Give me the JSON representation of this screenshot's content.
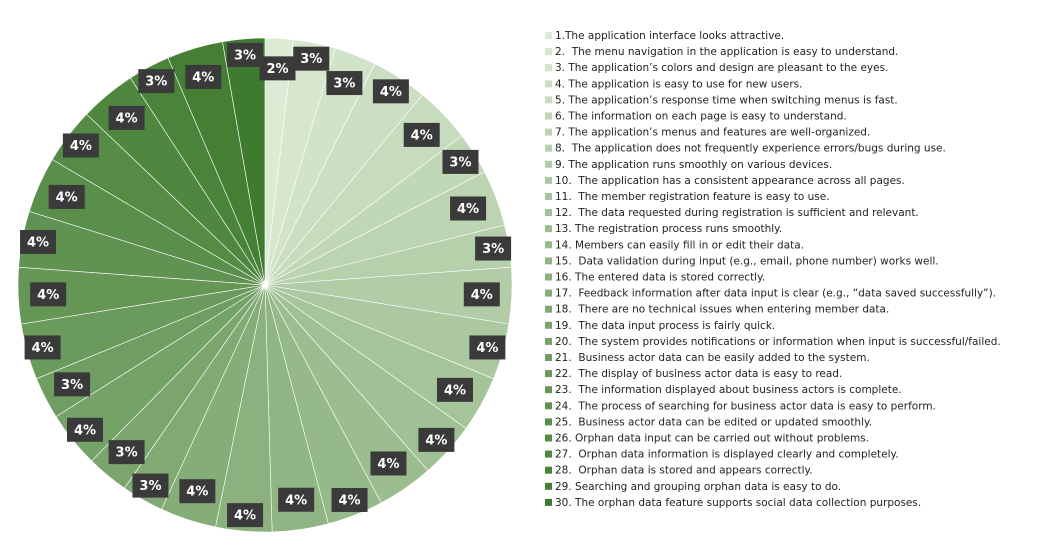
{
  "chart_data": {
    "type": "pie",
    "categories": [
      "1.The application interface looks attractive.",
      "2.  The menu navigation in the application is easy to understand.",
      "3. The application’s colors and design are pleasant to the eyes.",
      "4. The application is easy to use for new users.",
      "5. The application’s response time when switching menus is fast.",
      "6. The information on each page is easy to understand.",
      "7. The application’s menus and features are well-organized.",
      "8.  The application does not frequently experience errors/bugs during use.",
      "9. The application runs smoothly on various devices.",
      "10.  The application has a consistent appearance across all pages.",
      "11.  The member registration feature is easy to use.",
      "12.  The data requested during registration is sufficient and relevant.",
      "13. The registration process runs smoothly.",
      "14. Members can easily fill in or edit their data.",
      "15.  Data validation during input (e.g., email, phone number) works well.",
      "16. The entered data is stored correctly.",
      "17.  Feedback information after data input is clear (e.g., “data saved successfully”).",
      "18.  There are no technical issues when entering member data.",
      "19.  The data input process is fairly quick.",
      "20.  The system provides notifications or information when input is successful/failed.",
      "21.  Business actor data can be easily added to the system.",
      "22.  The display of business actor data is easy to read.",
      "23.  The information displayed about business actors is complete.",
      "24.  The process of searching for business actor data is easy to perform.",
      "25.  Business actor data can be edited or updated smoothly.",
      "26. Orphan data input can be carried out without problems.",
      "27.  Orphan data information is displayed clearly and completely.",
      "28.  Orphan data is stored and appears correctly.",
      "29. Searching and grouping orphan data is easy to do.",
      "30. The orphan data feature supports social data collection purposes."
    ],
    "values": [
      2,
      3,
      3,
      4,
      4,
      3,
      4,
      3,
      4,
      4,
      4,
      4,
      4,
      4,
      4,
      4,
      4,
      3,
      3,
      4,
      3,
      4,
      4,
      4,
      4,
      4,
      4,
      3,
      4,
      3
    ],
    "value_labels": [
      "2%",
      "3%",
      "3%",
      "4%",
      "4%",
      "3%",
      "4%",
      "3%",
      "4%",
      "4%",
      "4%",
      "4%",
      "4%",
      "4%",
      "4%",
      "4%",
      "4%",
      "3%",
      "3%",
      "4%",
      "3%",
      "4%",
      "4%",
      "4%",
      "4%",
      "4%",
      "4%",
      "3%",
      "4%",
      "3%"
    ],
    "colors": [
      "#dcebd3",
      "#d7e7cd",
      "#d1e3c8",
      "#ccdfc2",
      "#c6dcbc",
      "#c1d8b7",
      "#bcd4b1",
      "#b6d0ab",
      "#b1cca6",
      "#abc8a0",
      "#a6c49a",
      "#a0c195",
      "#9bbd8f",
      "#96b989",
      "#90b584",
      "#8bb17e",
      "#85ad78",
      "#80a973",
      "#7ba56d",
      "#75a267",
      "#709e62",
      "#6a9a5c",
      "#659656",
      "#609251",
      "#5a8e4b",
      "#558b45",
      "#4f8740",
      "#4a833a",
      "#457f34",
      "#3f7b2f"
    ],
    "legend": "right"
  }
}
